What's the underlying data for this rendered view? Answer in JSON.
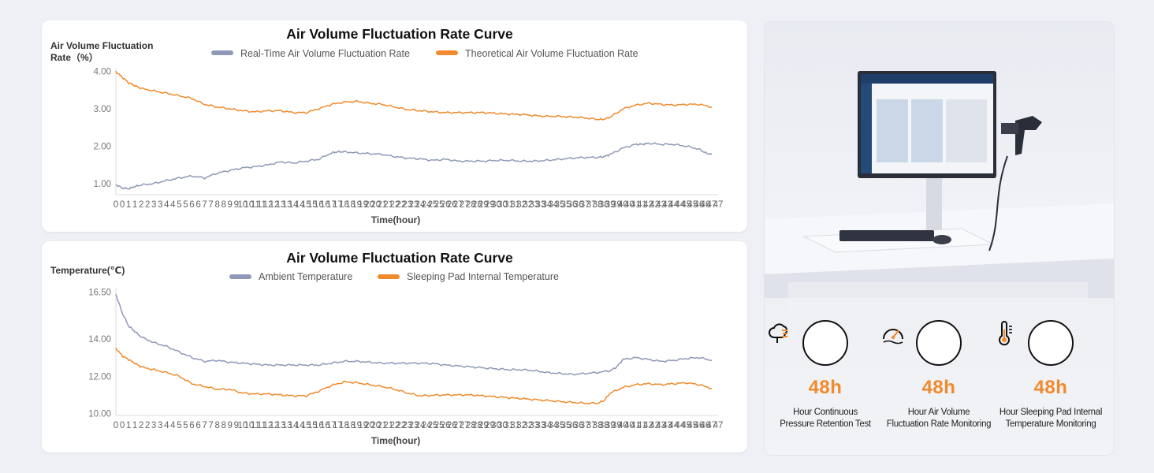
{
  "charts": {
    "top": {
      "title": "Air Volume Fluctuation Rate Curve",
      "ylabel_line1": "Air Volume Fluctuation",
      "ylabel_line2": "Rate（%）",
      "xlabel": "Time(hour)",
      "legend": [
        "Real-Time Air Volume Fluctuation Rate",
        "Theoretical Air Volume Fluctuation Rate"
      ]
    },
    "bottom": {
      "title": "Air Volume Fluctuation Rate Curve",
      "ylabel": "Temperature(℃)",
      "xlabel": "Time(hour)",
      "legend": [
        "Ambient Temperature",
        "Sleeping Pad Internal Temperature"
      ]
    }
  },
  "chart_data": [
    {
      "type": "line",
      "title": "Air Volume Fluctuation Rate Curve",
      "xlabel": "Time(hour)",
      "ylabel": "Air Volume Fluctuation Rate（%）",
      "ylim": [
        0.7,
        4.1
      ],
      "yticks": [
        "1.00",
        "2.00",
        "3.00",
        "4.00"
      ],
      "ytick_values": [
        1,
        2,
        3,
        4
      ],
      "x_ticks_per_hour": 2,
      "hours": [
        0,
        1,
        2,
        3,
        4,
        5,
        6,
        7,
        8,
        9,
        10,
        11,
        12,
        13,
        14,
        15,
        16,
        17,
        18,
        19,
        20,
        21,
        22,
        23,
        24,
        25,
        26,
        27,
        28,
        29,
        30,
        31,
        32,
        33,
        34,
        35,
        36,
        37,
        38,
        39,
        40,
        41,
        42,
        43,
        44,
        45,
        46,
        47
      ],
      "legend_position": "top",
      "series": [
        {
          "name": "Real-Time Air Volume Fluctuation Rate",
          "color": "#8f98b8",
          "x": [
            0,
            0.5,
            1,
            1.5,
            2,
            3,
            4,
            5,
            6,
            7,
            8,
            9,
            10,
            11,
            12,
            13,
            14,
            15,
            16,
            17,
            17.5,
            18,
            19,
            20,
            21,
            22,
            23,
            24,
            25,
            26,
            27,
            28,
            29,
            30,
            31,
            32,
            33,
            34,
            35,
            36,
            37,
            38,
            38.5,
            39,
            40,
            41,
            41.5,
            42,
            43,
            44,
            45,
            46,
            46.5,
            47
          ],
          "values": [
            0.97,
            0.88,
            0.86,
            0.92,
            0.96,
            1.0,
            1.08,
            1.15,
            1.2,
            1.15,
            1.28,
            1.35,
            1.42,
            1.45,
            1.5,
            1.58,
            1.55,
            1.6,
            1.65,
            1.82,
            1.85,
            1.85,
            1.82,
            1.8,
            1.78,
            1.72,
            1.68,
            1.66,
            1.62,
            1.65,
            1.6,
            1.6,
            1.6,
            1.62,
            1.62,
            1.6,
            1.6,
            1.62,
            1.65,
            1.68,
            1.7,
            1.7,
            1.72,
            1.78,
            1.95,
            2.05,
            2.05,
            2.08,
            2.05,
            2.05,
            2.0,
            1.92,
            1.82,
            1.78
          ]
        },
        {
          "name": "Theoretical Air Volume Fluctuation Rate",
          "color": "#f08a2c",
          "x": [
            0,
            0.5,
            1,
            1.5,
            2,
            3,
            4,
            5,
            6,
            7,
            8,
            9,
            10,
            11,
            12,
            13,
            14,
            15,
            16,
            17,
            18,
            19,
            20,
            21,
            22,
            23,
            24,
            25,
            26,
            27,
            28,
            29,
            30,
            31,
            32,
            33,
            34,
            35,
            36,
            37,
            38,
            38.5,
            39,
            40,
            41,
            42,
            43,
            44,
            45,
            46,
            47
          ],
          "values": [
            4.0,
            3.85,
            3.7,
            3.62,
            3.55,
            3.48,
            3.42,
            3.35,
            3.28,
            3.12,
            3.05,
            3.0,
            2.95,
            2.92,
            2.95,
            2.95,
            2.9,
            2.9,
            3.0,
            3.12,
            3.18,
            3.2,
            3.15,
            3.12,
            3.05,
            2.98,
            2.95,
            2.92,
            2.9,
            2.9,
            2.9,
            2.9,
            2.88,
            2.86,
            2.85,
            2.82,
            2.8,
            2.8,
            2.78,
            2.76,
            2.72,
            2.72,
            2.78,
            3.0,
            3.1,
            3.15,
            3.12,
            3.1,
            3.12,
            3.12,
            3.05
          ]
        }
      ]
    },
    {
      "type": "line",
      "title": "Air Volume Fluctuation Rate Curve",
      "xlabel": "Time(hour)",
      "ylabel": "Temperature(℃)",
      "ylim": [
        9.9,
        16.7
      ],
      "yticks": [
        "10.00",
        "12.00",
        "14.00",
        "16.50"
      ],
      "ytick_values": [
        10,
        12,
        14,
        16.5
      ],
      "x_ticks_per_hour": 2,
      "hours": [
        0,
        1,
        2,
        3,
        4,
        5,
        6,
        7,
        8,
        9,
        10,
        11,
        12,
        13,
        14,
        15,
        16,
        17,
        18,
        19,
        20,
        21,
        22,
        23,
        24,
        25,
        26,
        27,
        28,
        29,
        30,
        31,
        32,
        33,
        34,
        35,
        36,
        37,
        38,
        39,
        40,
        41,
        42,
        43,
        44,
        45,
        46,
        47
      ],
      "legend_position": "top",
      "series": [
        {
          "name": "Ambient Temperature",
          "color": "#8f98b8",
          "x": [
            0,
            0.5,
            1,
            1.5,
            2,
            3,
            4,
            5,
            6,
            7,
            8,
            9,
            10,
            11,
            12,
            13,
            14,
            15,
            16,
            17,
            18,
            19,
            20,
            21,
            22,
            23,
            24,
            25,
            26,
            27,
            28,
            29,
            30,
            31,
            32,
            33,
            34,
            35,
            36,
            37,
            38,
            39,
            39.5,
            40,
            41,
            42,
            43,
            44,
            45,
            46,
            47
          ],
          "values": [
            16.4,
            15.4,
            14.7,
            14.4,
            14.1,
            13.8,
            13.6,
            13.3,
            13.0,
            12.8,
            12.85,
            12.75,
            12.7,
            12.65,
            12.6,
            12.6,
            12.6,
            12.6,
            12.6,
            12.7,
            12.8,
            12.8,
            12.75,
            12.7,
            12.7,
            12.7,
            12.7,
            12.68,
            12.6,
            12.55,
            12.5,
            12.45,
            12.4,
            12.35,
            12.35,
            12.3,
            12.2,
            12.15,
            12.1,
            12.15,
            12.2,
            12.3,
            12.5,
            12.9,
            13.0,
            12.9,
            12.8,
            12.85,
            12.95,
            13.0,
            12.85
          ]
        },
        {
          "name": "Sleeping Pad Internal Temperature",
          "color": "#f08a2c",
          "x": [
            0,
            0.5,
            1,
            1.5,
            2,
            3,
            4,
            5,
            6,
            7,
            8,
            9,
            10,
            11,
            12,
            13,
            14,
            15,
            16,
            17,
            18,
            19,
            20,
            21,
            22,
            23,
            24,
            25,
            26,
            27,
            28,
            29,
            30,
            31,
            32,
            33,
            34,
            35,
            36,
            37,
            38,
            38.5,
            39,
            40,
            41,
            42,
            43,
            44,
            45,
            46,
            47
          ],
          "values": [
            13.5,
            13.1,
            12.9,
            12.7,
            12.5,
            12.35,
            12.2,
            12.0,
            11.6,
            11.45,
            11.3,
            11.3,
            11.1,
            11.05,
            11.05,
            11.0,
            10.95,
            10.95,
            11.2,
            11.5,
            11.7,
            11.65,
            11.55,
            11.45,
            11.3,
            11.1,
            10.95,
            10.98,
            11.0,
            11.0,
            11.0,
            10.95,
            10.9,
            10.85,
            10.8,
            10.75,
            10.7,
            10.65,
            10.6,
            10.55,
            10.55,
            10.7,
            11.1,
            11.4,
            11.55,
            11.6,
            11.55,
            11.6,
            11.65,
            11.55,
            11.35
          ]
        }
      ]
    }
  ],
  "stats": [
    {
      "value": "48h",
      "label_line1": "Hour Continuous",
      "label_line2": "Pressure Retention Test",
      "icon": "gauge-cloud-icon"
    },
    {
      "value": "48h",
      "label_line1": "Hour Air Volume",
      "label_line2": "Fluctuation Rate Monitoring",
      "icon": "speedometer-icon"
    },
    {
      "value": "48h",
      "label_line1": "Hour Sleeping Pad Internal",
      "label_line2": "Temperature Monitoring",
      "icon": "thermometer-icon"
    }
  ],
  "colors": {
    "accent": "#f08a2c",
    "series_gray": "#8f98b8",
    "axis": "#cfd3dc"
  }
}
